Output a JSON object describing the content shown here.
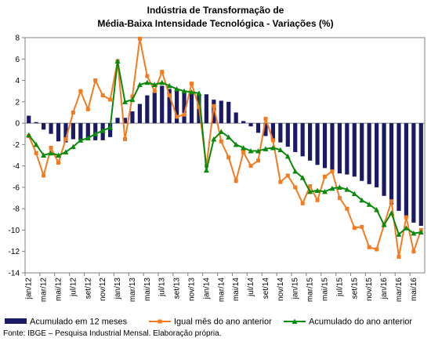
{
  "chart_data": {
    "type": "bar",
    "title_line1": "Indústria de Transformação de",
    "title_line2": "Média-Baixa Intensidade Tecnológica - Variações (%)",
    "ylim": [
      -14,
      8
    ],
    "yticks": [
      8,
      6,
      4,
      2,
      0,
      -2,
      -4,
      -6,
      -8,
      -10,
      -12,
      -14
    ],
    "x_tick_labels": [
      "jan/12",
      "mar/12",
      "mai/12",
      "jul/12",
      "set/12",
      "nov/12",
      "jan/13",
      "mar/13",
      "mai/13",
      "jul/13",
      "set/13",
      "nov/13",
      "jan/14",
      "mar/14",
      "mai/14",
      "jul/14",
      "set/14",
      "nov/14",
      "jan/15",
      "mar/15",
      "mai/15",
      "jul/15",
      "set/15",
      "nov/15",
      "jan/16",
      "mar/16",
      "mai/16"
    ],
    "months": [
      "jan/12",
      "fev/12",
      "mar/12",
      "abr/12",
      "mai/12",
      "jun/12",
      "jul/12",
      "ago/12",
      "set/12",
      "out/12",
      "nov/12",
      "dez/12",
      "jan/13",
      "fev/13",
      "mar/13",
      "abr/13",
      "mai/13",
      "jun/13",
      "jul/13",
      "ago/13",
      "set/13",
      "out/13",
      "nov/13",
      "dez/13",
      "jan/14",
      "fev/14",
      "mar/14",
      "abr/14",
      "mai/14",
      "jun/14",
      "jul/14",
      "ago/14",
      "set/14",
      "out/14",
      "nov/14",
      "dez/14",
      "jan/15",
      "fev/15",
      "mar/15",
      "abr/15",
      "mai/15",
      "jun/15",
      "jul/15",
      "ago/15",
      "set/15",
      "out/15",
      "nov/15",
      "dez/15",
      "jan/16",
      "fev/16",
      "mar/16",
      "abr/16",
      "mai/16",
      "jun/16"
    ],
    "series": [
      {
        "name": "Acumulado em 12 meses",
        "kind": "bar",
        "color": "#1a1a66",
        "values": [
          0.7,
          0.1,
          -0.6,
          -1.0,
          -1.7,
          -1.8,
          -1.5,
          -1.6,
          -1.5,
          -1.6,
          -1.6,
          -1.3,
          0.5,
          0.5,
          1.1,
          1.8,
          2.6,
          2.9,
          3.5,
          3.2,
          3.2,
          3.0,
          2.9,
          2.7,
          2.7,
          2.2,
          2.1,
          2.0,
          1.0,
          0.2,
          -0.3,
          -0.9,
          -1.2,
          -1.6,
          -1.8,
          -2.2,
          -2.7,
          -3.1,
          -3.5,
          -3.9,
          -4.2,
          -4.4,
          -4.7,
          -4.8,
          -5.0,
          -5.4,
          -5.7,
          -6.0,
          -6.8,
          -7.6,
          -8.2,
          -8.8,
          -9.3,
          -9.6
        ]
      },
      {
        "name": "Igual mês do ano anterior",
        "kind": "line",
        "marker": "square",
        "color": "#f47b20",
        "values": [
          -1.2,
          -2.8,
          -4.9,
          -2.3,
          -3.7,
          -1.5,
          1.0,
          3.0,
          1.3,
          4.0,
          2.6,
          2.2,
          5.8,
          -1.5,
          2.5,
          7.9,
          4.4,
          3.0,
          4.8,
          2.6,
          0.6,
          0.8,
          3.7,
          1.5,
          -4.0,
          1.6,
          -1.7,
          -3.2,
          -5.4,
          -2.7,
          -4.0,
          -3.5,
          0.4,
          -1.6,
          -5.5,
          -4.9,
          -6.0,
          -7.5,
          -5.9,
          -7.2,
          -5.0,
          -4.5,
          -7.0,
          -8.0,
          -9.8,
          -9.7,
          -11.6,
          -11.8,
          -9.5,
          -7.3,
          -12.5,
          -8.8,
          -12.0,
          -10.0
        ]
      },
      {
        "name": "Acumulado do ano anterior",
        "kind": "line",
        "marker": "triangle",
        "color": "#0a8a0a",
        "values": [
          -1.1,
          -2.0,
          -3.0,
          -2.8,
          -3.0,
          -2.7,
          -2.2,
          -1.6,
          -1.4,
          -1.0,
          -0.7,
          -0.4,
          5.8,
          2.0,
          2.2,
          3.6,
          3.8,
          3.6,
          3.8,
          3.5,
          3.2,
          3.0,
          2.9,
          2.8,
          -4.4,
          -1.5,
          -0.8,
          -1.3,
          -2.0,
          -2.3,
          -2.6,
          -2.6,
          -2.4,
          -2.3,
          -2.5,
          -3.1,
          -4.5,
          -5.1,
          -6.4,
          -6.3,
          -6.4,
          -6.1,
          -6.0,
          -6.2,
          -6.6,
          -7.2,
          -7.6,
          -8.1,
          -9.5,
          -8.4,
          -10.4,
          -9.8,
          -10.3,
          -10.2
        ]
      }
    ],
    "legend_position": "bottom",
    "source_note": "Fonte: IBGE – Pesquisa Industrial Mensal. Elaboração própria."
  }
}
